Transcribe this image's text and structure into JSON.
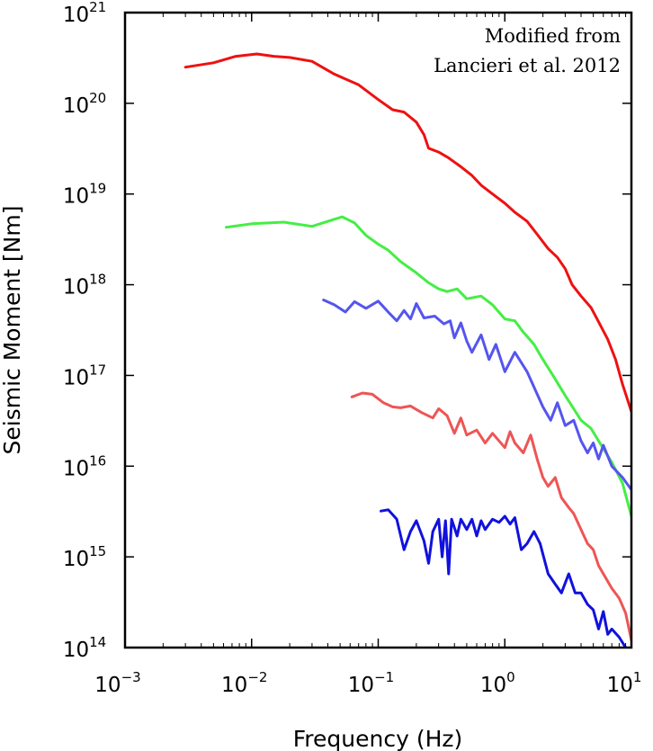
{
  "chart_data": {
    "type": "line",
    "title": "",
    "xlabel": "Frequency (Hz)",
    "ylabel": "Seismic Moment [Nm]",
    "xscale": "log",
    "yscale": "log",
    "xlim": [
      0.001,
      10
    ],
    "ylim": [
      100000000000000.0,
      1e+21
    ],
    "x_ticks": [
      {
        "base": "10",
        "exp": "−3",
        "value": 0.001
      },
      {
        "base": "10",
        "exp": "−2",
        "value": 0.01
      },
      {
        "base": "10",
        "exp": "−1",
        "value": 0.1
      },
      {
        "base": "10",
        "exp": "0",
        "value": 1
      },
      {
        "base": "10",
        "exp": "1",
        "value": 10
      }
    ],
    "y_ticks": [
      {
        "base": "10",
        "exp": "14",
        "value": 100000000000000.0
      },
      {
        "base": "10",
        "exp": "15",
        "value": 1000000000000000.0
      },
      {
        "base": "10",
        "exp": "16",
        "value": 1e+16
      },
      {
        "base": "10",
        "exp": "17",
        "value": 1e+17
      },
      {
        "base": "10",
        "exp": "18",
        "value": 1e+18
      },
      {
        "base": "10",
        "exp": "19",
        "value": 1e+19
      },
      {
        "base": "10",
        "exp": "20",
        "value": 1e+20
      },
      {
        "base": "10",
        "exp": "21",
        "value": 1e+21
      }
    ],
    "annotation": [
      "Modified from",
      "Lancieri et al. 2012"
    ],
    "grid": false,
    "legend": "none",
    "series": [
      {
        "color": "#ee1111",
        "points": [
          [
            0.003,
            2.5e+20
          ],
          [
            0.005,
            2.8e+20
          ],
          [
            0.0075,
            3.3e+20
          ],
          [
            0.011,
            3.5e+20
          ],
          [
            0.015,
            3.3e+20
          ],
          [
            0.02,
            3.2e+20
          ],
          [
            0.03,
            2.9e+20
          ],
          [
            0.045,
            2.1e+20
          ],
          [
            0.07,
            1.6e+20
          ],
          [
            0.1,
            1.1e+20
          ],
          [
            0.13,
            8.5e+19
          ],
          [
            0.16,
            8e+19
          ],
          [
            0.2,
            6.2e+19
          ],
          [
            0.23,
            4.5e+19
          ],
          [
            0.25,
            3.2e+19
          ],
          [
            0.3,
            2.9e+19
          ],
          [
            0.36,
            2.5e+19
          ],
          [
            0.45,
            2e+19
          ],
          [
            0.55,
            1.6e+19
          ],
          [
            0.65,
            1.25e+19
          ],
          [
            0.8,
            1e+19
          ],
          [
            1.0,
            7.9e+18
          ],
          [
            1.2,
            6.3e+18
          ],
          [
            1.5,
            5e+18
          ],
          [
            1.8,
            3.6e+18
          ],
          [
            2.2,
            2.5e+18
          ],
          [
            2.6,
            2e+18
          ],
          [
            3.0,
            1.5e+18
          ],
          [
            3.4,
            1e+18
          ],
          [
            4.0,
            7.5e+17
          ],
          [
            4.8,
            5.6e+17
          ],
          [
            5.5,
            3.9e+17
          ],
          [
            6.5,
            2.5e+17
          ],
          [
            7.5,
            1.5e+17
          ],
          [
            8.5,
            8e+16
          ],
          [
            10.0,
            4e+16
          ]
        ]
      },
      {
        "color": "#44ee44",
        "points": [
          [
            0.0063,
            4.3e+18
          ],
          [
            0.01,
            4.7e+18
          ],
          [
            0.018,
            4.9e+18
          ],
          [
            0.03,
            4.4e+18
          ],
          [
            0.04,
            5e+18
          ],
          [
            0.052,
            5.6e+18
          ],
          [
            0.065,
            4.8e+18
          ],
          [
            0.08,
            3.5e+18
          ],
          [
            0.1,
            2.8e+18
          ],
          [
            0.12,
            2.4e+18
          ],
          [
            0.15,
            1.8e+18
          ],
          [
            0.2,
            1.35e+18
          ],
          [
            0.25,
            1.05e+18
          ],
          [
            0.3,
            9e+17
          ],
          [
            0.35,
            8.4e+17
          ],
          [
            0.42,
            9e+17
          ],
          [
            0.5,
            7e+17
          ],
          [
            0.65,
            7.5e+17
          ],
          [
            0.8,
            6e+17
          ],
          [
            1.0,
            4.2e+17
          ],
          [
            1.2,
            4e+17
          ],
          [
            1.4,
            3e+17
          ],
          [
            1.7,
            2.2e+17
          ],
          [
            2.0,
            1.5e+17
          ],
          [
            2.4,
            1e+17
          ],
          [
            3.0,
            6e+16
          ],
          [
            3.5,
            4.3e+16
          ],
          [
            4.0,
            3.2e+16
          ],
          [
            4.8,
            2.6e+16
          ],
          [
            5.5,
            1.9e+16
          ],
          [
            7.0,
            1.1e+16
          ],
          [
            8.5,
            6500000000000000.0
          ],
          [
            10.0,
            2800000000000000.0
          ]
        ]
      },
      {
        "color": "#5555ee",
        "points": [
          [
            0.037,
            6.8e+17
          ],
          [
            0.045,
            6e+17
          ],
          [
            0.055,
            5e+17
          ],
          [
            0.065,
            6.5e+17
          ],
          [
            0.08,
            5.5e+17
          ],
          [
            0.1,
            6.6e+17
          ],
          [
            0.12,
            5e+17
          ],
          [
            0.14,
            4e+17
          ],
          [
            0.16,
            5.2e+17
          ],
          [
            0.18,
            4.2e+17
          ],
          [
            0.2,
            6.2e+17
          ],
          [
            0.23,
            4.3e+17
          ],
          [
            0.28,
            4.5e+17
          ],
          [
            0.33,
            3.7e+17
          ],
          [
            0.37,
            4e+17
          ],
          [
            0.4,
            2.6e+17
          ],
          [
            0.45,
            3.8e+17
          ],
          [
            0.5,
            2.4e+17
          ],
          [
            0.55,
            1.8e+17
          ],
          [
            0.65,
            2.8e+17
          ],
          [
            0.75,
            1.5e+17
          ],
          [
            0.85,
            2.2e+17
          ],
          [
            1.0,
            1.1e+17
          ],
          [
            1.2,
            1.8e+17
          ],
          [
            1.5,
            1.1e+17
          ],
          [
            2.0,
            4.5e+16
          ],
          [
            2.3,
            3.2e+16
          ],
          [
            2.6,
            5e+16
          ],
          [
            3.0,
            2.8e+16
          ],
          [
            3.5,
            3.2e+16
          ],
          [
            4.0,
            1.9e+16
          ],
          [
            4.5,
            1.4e+16
          ],
          [
            5.0,
            1.8e+16
          ],
          [
            5.5,
            1.2e+16
          ],
          [
            6.0,
            1.7e+16
          ],
          [
            7.0,
            1e+16
          ],
          [
            8.5,
            7500000000000000.0
          ],
          [
            10.0,
            5500000000000000.0
          ]
        ]
      },
      {
        "color": "#ee5555",
        "points": [
          [
            0.062,
            5.8e+16
          ],
          [
            0.075,
            6.4e+16
          ],
          [
            0.09,
            6.2e+16
          ],
          [
            0.11,
            5e+16
          ],
          [
            0.13,
            4.5e+16
          ],
          [
            0.15,
            4.4e+16
          ],
          [
            0.18,
            4.6e+16
          ],
          [
            0.22,
            3.9e+16
          ],
          [
            0.27,
            3.4e+16
          ],
          [
            0.3,
            4.3e+16
          ],
          [
            0.35,
            3.6e+16
          ],
          [
            0.4,
            2.3e+16
          ],
          [
            0.45,
            3.4e+16
          ],
          [
            0.5,
            2.2e+16
          ],
          [
            0.6,
            2.5e+16
          ],
          [
            0.7,
            1.8e+16
          ],
          [
            0.8,
            2.3e+16
          ],
          [
            1.0,
            1.6e+16
          ],
          [
            1.1,
            2.4e+16
          ],
          [
            1.2,
            1.8e+16
          ],
          [
            1.4,
            1.4e+16
          ],
          [
            1.6,
            2.2e+16
          ],
          [
            1.8,
            1.2e+16
          ],
          [
            2.0,
            7500000000000000.0
          ],
          [
            2.2,
            6000000000000000.0
          ],
          [
            2.5,
            7500000000000000.0
          ],
          [
            2.8,
            4500000000000000.0
          ],
          [
            3.2,
            3500000000000000.0
          ],
          [
            3.5,
            3000000000000000.0
          ],
          [
            4.0,
            2000000000000000.0
          ],
          [
            4.5,
            1400000000000000.0
          ],
          [
            5.0,
            1200000000000000.0
          ],
          [
            5.5,
            800000000000000.0
          ],
          [
            6.0,
            650000000000000.0
          ],
          [
            7.0,
            450000000000000.0
          ],
          [
            8.0,
            350000000000000.0
          ],
          [
            9.0,
            240000000000000.0
          ],
          [
            10.0,
            120000000000000.0
          ]
        ]
      },
      {
        "color": "#1111dd",
        "points": [
          [
            0.105,
            3200000000000000.0
          ],
          [
            0.12,
            3300000000000000.0
          ],
          [
            0.14,
            2600000000000000.0
          ],
          [
            0.16,
            1200000000000000.0
          ],
          [
            0.18,
            1900000000000000.0
          ],
          [
            0.2,
            2500000000000000.0
          ],
          [
            0.23,
            1500000000000000.0
          ],
          [
            0.25,
            850000000000000.0
          ],
          [
            0.27,
            1900000000000000.0
          ],
          [
            0.3,
            2600000000000000.0
          ],
          [
            0.32,
            1000000000000000.0
          ],
          [
            0.34,
            2500000000000000.0
          ],
          [
            0.36,
            650000000000000.0
          ],
          [
            0.38,
            2600000000000000.0
          ],
          [
            0.42,
            1700000000000000.0
          ],
          [
            0.45,
            2600000000000000.0
          ],
          [
            0.5,
            2000000000000000.0
          ],
          [
            0.55,
            2600000000000000.0
          ],
          [
            0.6,
            1700000000000000.0
          ],
          [
            0.65,
            2500000000000000.0
          ],
          [
            0.7,
            2000000000000000.0
          ],
          [
            0.8,
            2600000000000000.0
          ],
          [
            0.9,
            2400000000000000.0
          ],
          [
            1.0,
            2800000000000000.0
          ],
          [
            1.1,
            2300000000000000.0
          ],
          [
            1.2,
            2700000000000000.0
          ],
          [
            1.35,
            1200000000000000.0
          ],
          [
            1.5,
            1400000000000000.0
          ],
          [
            1.7,
            1900000000000000.0
          ],
          [
            1.9,
            1400000000000000.0
          ],
          [
            2.2,
            650000000000000.0
          ],
          [
            2.5,
            500000000000000.0
          ],
          [
            2.8,
            400000000000000.0
          ],
          [
            3.2,
            650000000000000.0
          ],
          [
            3.6,
            400000000000000.0
          ],
          [
            4.0,
            400000000000000.0
          ],
          [
            4.5,
            300000000000000.0
          ],
          [
            5.0,
            260000000000000.0
          ],
          [
            5.5,
            160000000000000.0
          ],
          [
            6.0,
            250000000000000.0
          ],
          [
            6.5,
            140000000000000.0
          ],
          [
            7.0,
            160000000000000.0
          ],
          [
            8.0,
            130000000000000.0
          ],
          [
            9.0,
            100000000000000.0
          ]
        ]
      }
    ]
  }
}
